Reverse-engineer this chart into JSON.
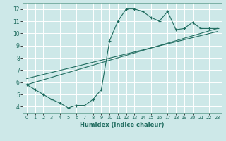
{
  "xlabel": "Humidex (Indice chaleur)",
  "ylabel": "",
  "background_color": "#cde8e8",
  "grid_color": "#b0d4d4",
  "line_color": "#1e6b5e",
  "xlim": [
    -0.5,
    23.5
  ],
  "ylim": [
    3.5,
    12.5
  ],
  "yticks": [
    4,
    5,
    6,
    7,
    8,
    9,
    10,
    11,
    12
  ],
  "xticks": [
    0,
    1,
    2,
    3,
    4,
    5,
    6,
    7,
    8,
    9,
    10,
    11,
    12,
    13,
    14,
    15,
    16,
    17,
    18,
    19,
    20,
    21,
    22,
    23
  ],
  "series1_x": [
    0,
    1,
    2,
    3,
    4,
    5,
    6,
    7,
    8,
    9,
    10,
    11,
    12,
    13,
    14,
    15,
    16,
    17,
    18,
    19,
    20,
    21,
    22,
    23
  ],
  "series1_y": [
    5.8,
    5.4,
    5.0,
    4.6,
    4.3,
    3.9,
    4.1,
    4.1,
    4.6,
    5.4,
    9.4,
    11.0,
    12.0,
    12.0,
    11.8,
    11.3,
    11.0,
    11.8,
    10.3,
    10.4,
    10.9,
    10.4,
    10.4,
    10.4
  ],
  "trend1_x": [
    0,
    23
  ],
  "trend1_y": [
    5.8,
    10.4
  ],
  "trend2_x": [
    0,
    23
  ],
  "trend2_y": [
    6.3,
    10.15
  ]
}
